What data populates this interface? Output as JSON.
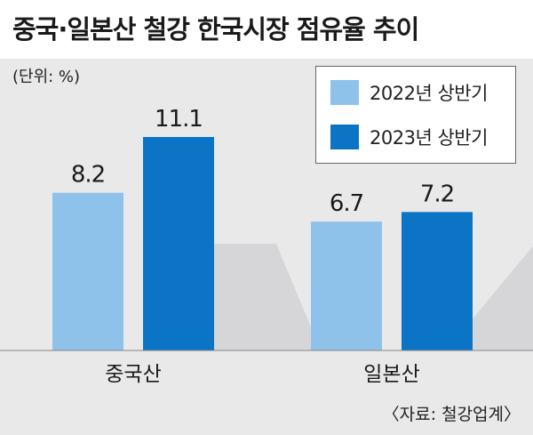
{
  "title": "중국·일본산 철강 한국시장 점유율 추이",
  "unit": "(단위: %)",
  "source": "〈자료: 철강업계〉",
  "colors": {
    "series_2022": "#8ec2ea",
    "series_2023": "#0b74c4",
    "background": "#e9e9ea",
    "shadow": "#d6d6d8"
  },
  "chart_data": {
    "type": "bar",
    "categories": [
      "중국산",
      "일본산"
    ],
    "series": [
      {
        "name": "2022년 상반기",
        "values": [
          8.2,
          6.7
        ]
      },
      {
        "name": "2023년 상반기",
        "values": [
          11.1,
          7.2
        ]
      }
    ],
    "title": "중국·일본산 철강 한국시장 점유율 추이",
    "ylabel": "",
    "xlabel": "",
    "ylim": [
      0,
      12
    ],
    "legend": "top-right",
    "grid": false
  }
}
